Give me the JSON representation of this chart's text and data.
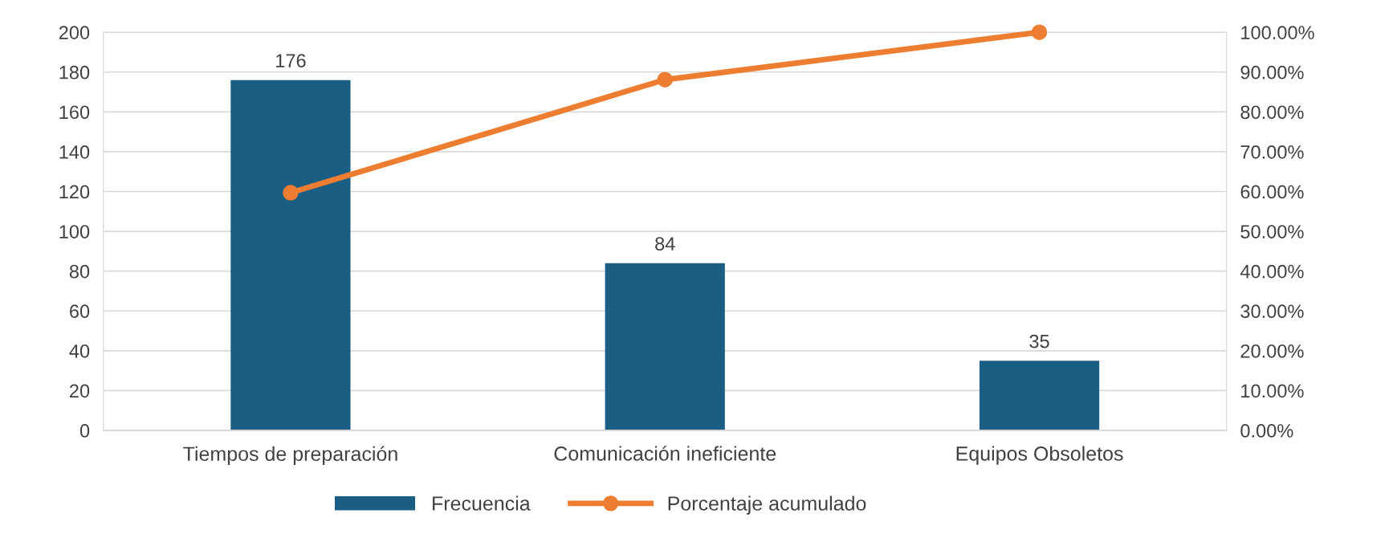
{
  "chart_data": {
    "type": "bar",
    "categories": [
      "Tiempos de preparación",
      "Comunicación ineficiente",
      "Equipos Obsoletos"
    ],
    "series": [
      {
        "name": "Frecuencia",
        "color": "#1b5e84",
        "values": [
          176,
          84,
          35
        ],
        "value_labels": [
          "176",
          "84",
          "35"
        ]
      },
      {
        "name": "Porcentaje acumulado",
        "type": "line",
        "axis": "y2",
        "color": "#ed7d31",
        "marker": "circle",
        "values": [
          59.7,
          88.1,
          100
        ]
      }
    ],
    "ylim": [
      0,
      200
    ],
    "yticks": [
      0,
      20,
      40,
      60,
      80,
      100,
      120,
      140,
      160,
      180,
      200
    ],
    "y2lim": [
      0,
      100
    ],
    "y2ticks": [
      {
        "value": 0,
        "label": "0.00%"
      },
      {
        "value": 10,
        "label": "10.00%"
      },
      {
        "value": 20,
        "label": "20.00%"
      },
      {
        "value": 30,
        "label": "30.00%"
      },
      {
        "value": 40,
        "label": "40.00%"
      },
      {
        "value": 50,
        "label": "50.00%"
      },
      {
        "value": 60,
        "label": "60.00%"
      },
      {
        "value": 70,
        "label": "70.00%"
      },
      {
        "value": 80,
        "label": "80.00%"
      },
      {
        "value": 90,
        "label": "90.00%"
      },
      {
        "value": 100,
        "label": "100.00%"
      }
    ],
    "grid": "y",
    "legend": "bottom"
  }
}
